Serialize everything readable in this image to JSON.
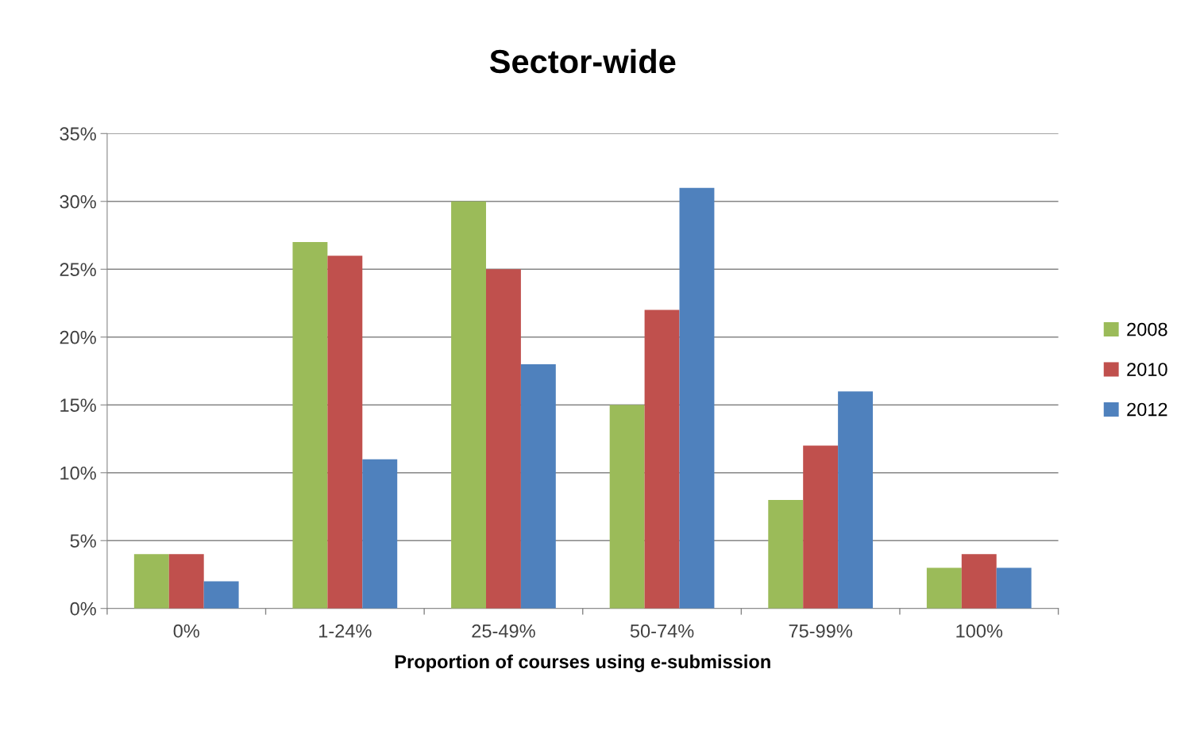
{
  "chart_data": {
    "type": "bar",
    "title": "Sector-wide",
    "xlabel": "Proportion of courses using e-submission",
    "categories": [
      "0%",
      "1-24%",
      "25-49%",
      "50-74%",
      "75-99%",
      "100%"
    ],
    "series": [
      {
        "name": "2008",
        "color": "#9bbb59",
        "values": [
          4,
          27,
          30,
          15,
          8,
          3
        ]
      },
      {
        "name": "2010",
        "color": "#c0504d",
        "values": [
          4,
          26,
          25,
          22,
          12,
          4
        ]
      },
      {
        "name": "2012",
        "color": "#4f81bd",
        "values": [
          2,
          11,
          18,
          31,
          16,
          3
        ]
      }
    ],
    "ylim": [
      0,
      35
    ],
    "yticks": [
      {
        "value": 0,
        "label": "0%"
      },
      {
        "value": 5,
        "label": "5%"
      },
      {
        "value": 10,
        "label": "10%"
      },
      {
        "value": 15,
        "label": "15%"
      },
      {
        "value": 20,
        "label": "20%"
      },
      {
        "value": 25,
        "label": "25%"
      },
      {
        "value": 30,
        "label": "30%"
      },
      {
        "value": 35,
        "label": "35%"
      }
    ],
    "grid": "y",
    "legend": "right"
  }
}
